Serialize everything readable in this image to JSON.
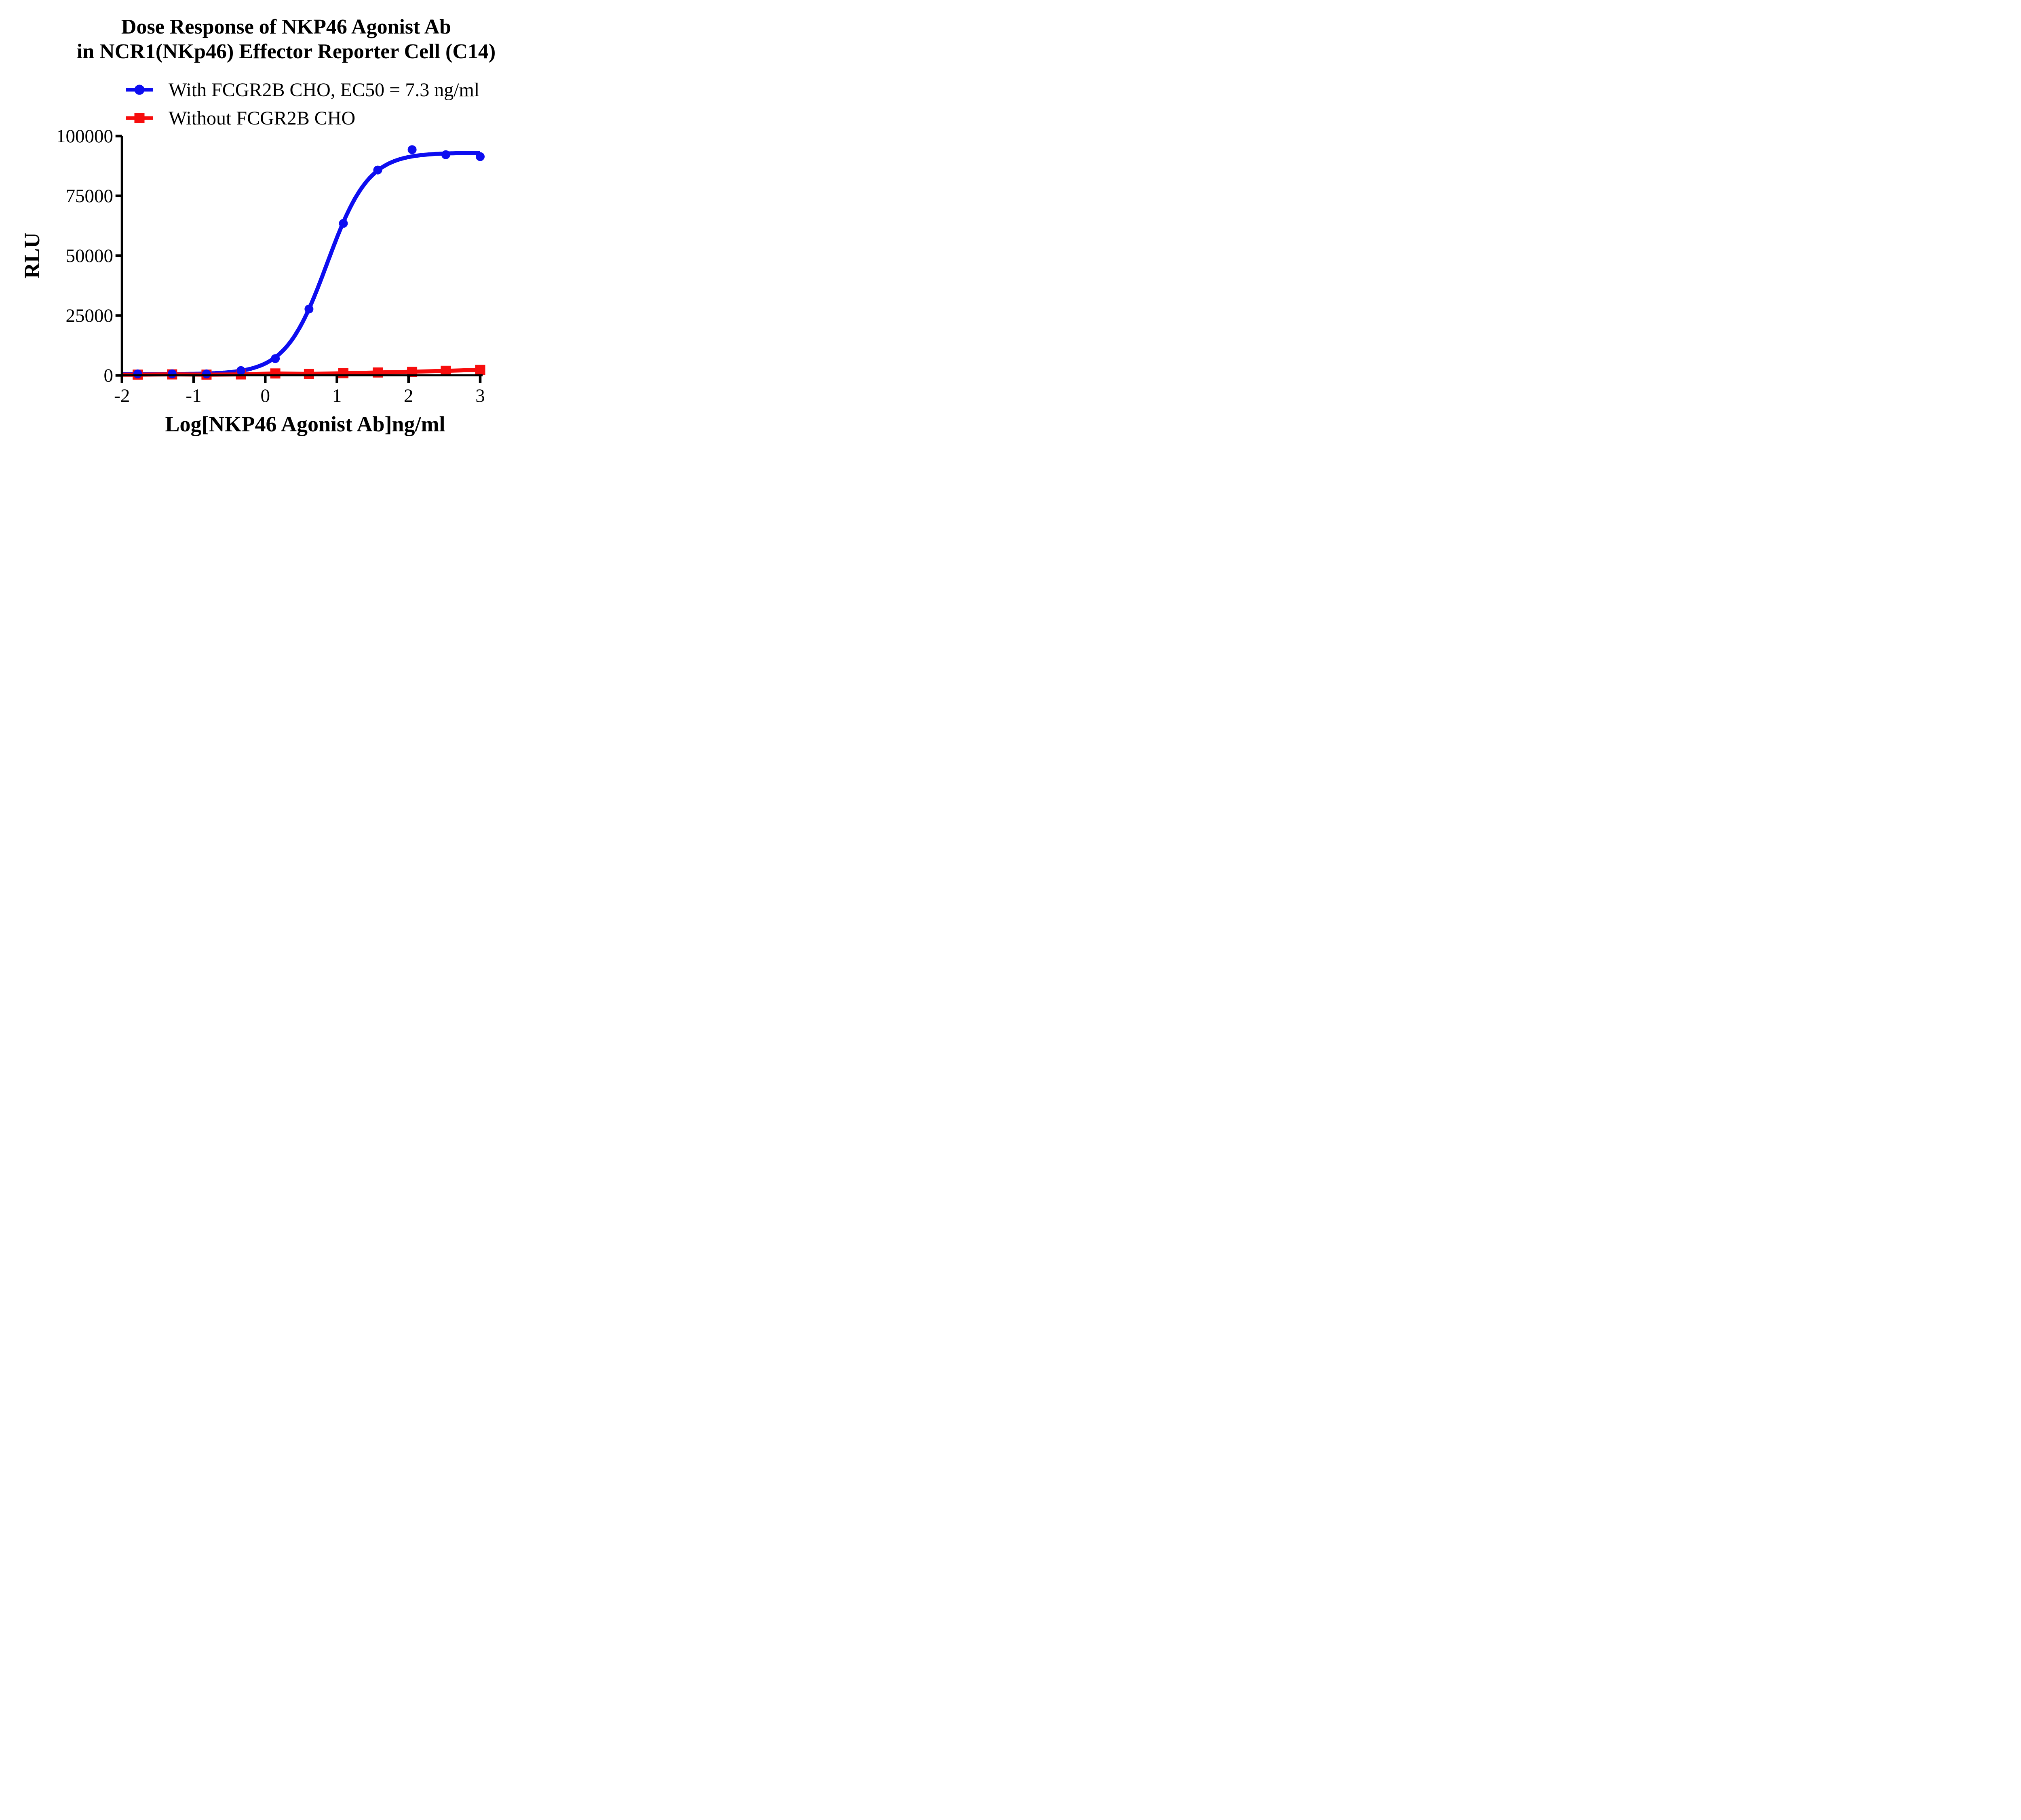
{
  "figure": {
    "title_line1": "Dose Response of NKP46 Agonist Ab",
    "title_line2": "in NCR1(NKp46) Effector Reporter Cell (C14)"
  },
  "legend": [
    {
      "label": "With FCGR2B CHO, EC50 = 7.3 ng/ml",
      "color": "#0d0df0",
      "marker": "circle"
    },
    {
      "label": "Without FCGR2B CHO",
      "color": "#f70d0d",
      "marker": "square"
    }
  ],
  "chart_data": {
    "type": "scatter",
    "title": "Dose Response of NKP46 Agonist Ab in NCR1(NKp46) Effector Reporter Cell (C14)",
    "xlabel": "Log[NKP46 Agonist Ab]ng/ml",
    "ylabel": "RLU",
    "x_ticks": [
      -2,
      -1,
      0,
      1,
      2,
      3
    ],
    "y_ticks": [
      0,
      25000,
      50000,
      75000,
      100000
    ],
    "xlim": [
      -2,
      3.03
    ],
    "ylim": [
      0,
      100000
    ],
    "grid": false,
    "legend_position": "top",
    "axis_color": "#000000",
    "series": [
      {
        "name": "With FCGR2B CHO, EC50 = 7.3 ng/ml",
        "color": "#0d0df0",
        "marker": "circle",
        "line": "sigmoid-fit",
        "x": [
          -1.78,
          -1.3,
          -0.82,
          -0.34,
          0.14,
          0.61,
          1.09,
          1.57,
          2.05,
          2.52,
          3.0
        ],
        "y": [
          600,
          650,
          600,
          2000,
          7000,
          27700,
          63500,
          85800,
          94300,
          92200,
          91400
        ],
        "fit": {
          "type": "4PL",
          "bottom": 500,
          "top": 93000,
          "logEC50": 0.863,
          "hill": 1.5
        },
        "ec50_ng_ml": 7.3
      },
      {
        "name": "Without FCGR2B CHO",
        "color": "#f70d0d",
        "marker": "square",
        "line": "connect",
        "x": [
          -1.78,
          -1.3,
          -0.82,
          -0.34,
          0.14,
          0.61,
          1.09,
          1.57,
          2.05,
          2.52,
          3.0
        ],
        "y": [
          300,
          400,
          300,
          400,
          800,
          600,
          900,
          1200,
          1500,
          1900,
          2300
        ]
      }
    ]
  }
}
